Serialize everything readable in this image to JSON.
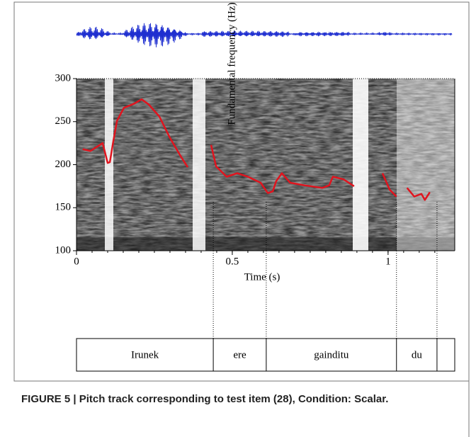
{
  "chart_data": {
    "type": "line",
    "title": "FIGURE 5 | Pitch track corresponding to test item (28), Condition: Scalar.",
    "xlabel": "Time (s)",
    "ylabel": "Fundamental frequency (Hz)",
    "color": "#e0141e",
    "x": [
      0.02,
      0.045,
      0.084,
      0.1,
      0.107,
      0.118,
      0.13,
      0.152,
      0.186,
      0.209,
      0.232,
      0.266,
      0.3,
      0.334,
      0.357,
      null,
      0.432,
      0.448,
      0.482,
      0.516,
      0.55,
      0.591,
      0.614,
      0.63,
      0.641,
      0.659,
      0.686,
      0.732,
      0.789,
      0.811,
      0.823,
      0.857,
      0.891,
      null,
      0.982,
      1.005,
      1.027,
      null,
      1.061,
      1.084,
      1.107,
      1.118,
      1.134
    ],
    "values": [
      218,
      216,
      225,
      202,
      203,
      227,
      251,
      266,
      271,
      276,
      270,
      256,
      231,
      210,
      197,
      null,
      223,
      198,
      186,
      190,
      186,
      179,
      167,
      169,
      181,
      190,
      179,
      176,
      173,
      176,
      186,
      183,
      175,
      null,
      190,
      171,
      163,
      null,
      173,
      163,
      166,
      159,
      168
    ],
    "xlim": [
      0,
      1.214
    ],
    "xticks": [
      0,
      0.5,
      1
    ],
    "ylim": [
      100,
      300
    ],
    "yticks": [
      100,
      150,
      200,
      250,
      300
    ],
    "tier": {
      "labels": [
        "Irunek",
        "ere",
        "gainditu",
        "du",
        null
      ],
      "boundaries": [
        0.439,
        0.609,
        1.027,
        1.157
      ]
    }
  }
}
